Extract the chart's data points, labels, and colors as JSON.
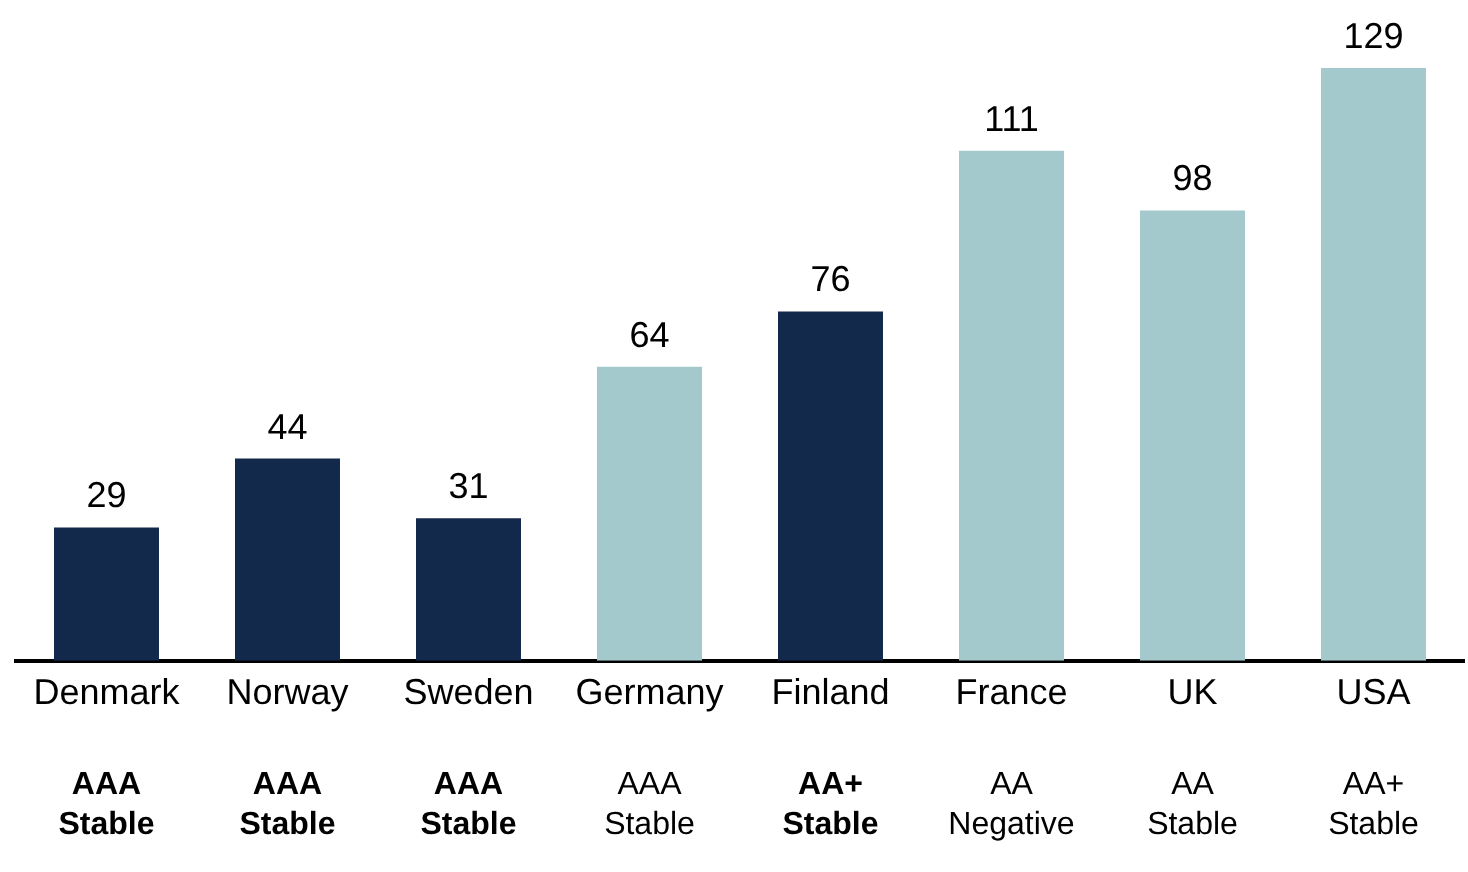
{
  "chart_data": {
    "type": "bar",
    "categories": [
      "Denmark",
      "Norway",
      "Sweden",
      "Germany",
      "Finland",
      "France",
      "UK",
      "USA"
    ],
    "values": [
      29,
      44,
      31,
      64,
      76,
      111,
      98,
      129
    ],
    "colors": [
      "#13294b",
      "#13294b",
      "#13294b",
      "#a3c9cc",
      "#13294b",
      "#a3c9cc",
      "#a3c9cc",
      "#a3c9cc"
    ],
    "data_labels": true,
    "annotations": [
      "AAA\nStable",
      "AAA\nStable",
      "AAA\nStable",
      "AAA\nStable",
      "AA+\nStable",
      "AA\nNegative",
      "AA\nStable",
      "AA+\nStable"
    ]
  }
}
